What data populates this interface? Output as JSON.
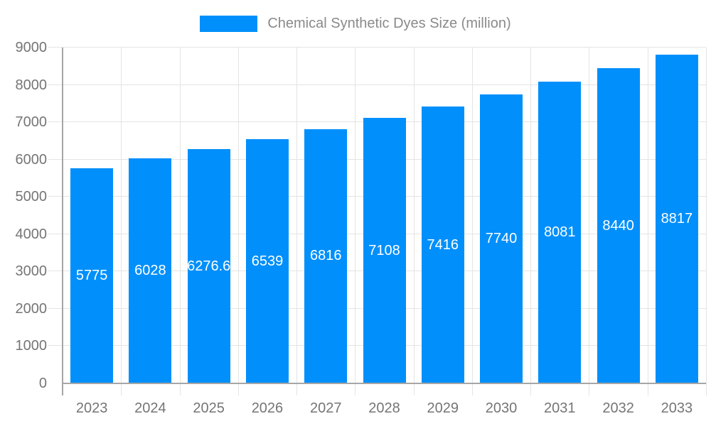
{
  "legend": {
    "swatch_color": "#008FFB"
  },
  "chart_data": {
    "type": "bar",
    "title": "Chemical Synthetic Dyes Size (million)",
    "categories": [
      "2023",
      "2024",
      "2025",
      "2026",
      "2027",
      "2028",
      "2029",
      "2030",
      "2031",
      "2032",
      "2033"
    ],
    "values": [
      5775,
      6028,
      6276.6,
      6539,
      6816,
      7108,
      7416,
      7740,
      8081,
      8440,
      8817
    ],
    "xlabel": "",
    "ylabel": "",
    "ylim": [
      0,
      9000
    ],
    "ytick_step": 1000,
    "grid": true,
    "legend_position": "top",
    "value_labels": "inside-center-white"
  },
  "colors": {
    "bar": "#008FFB",
    "grid": "#e4e4e4",
    "axis_line": "#a6a6a6",
    "tick_text": "#757575",
    "legend_text": "#8a8a8a",
    "value_text": "#ffffff",
    "background": "#ffffff"
  }
}
